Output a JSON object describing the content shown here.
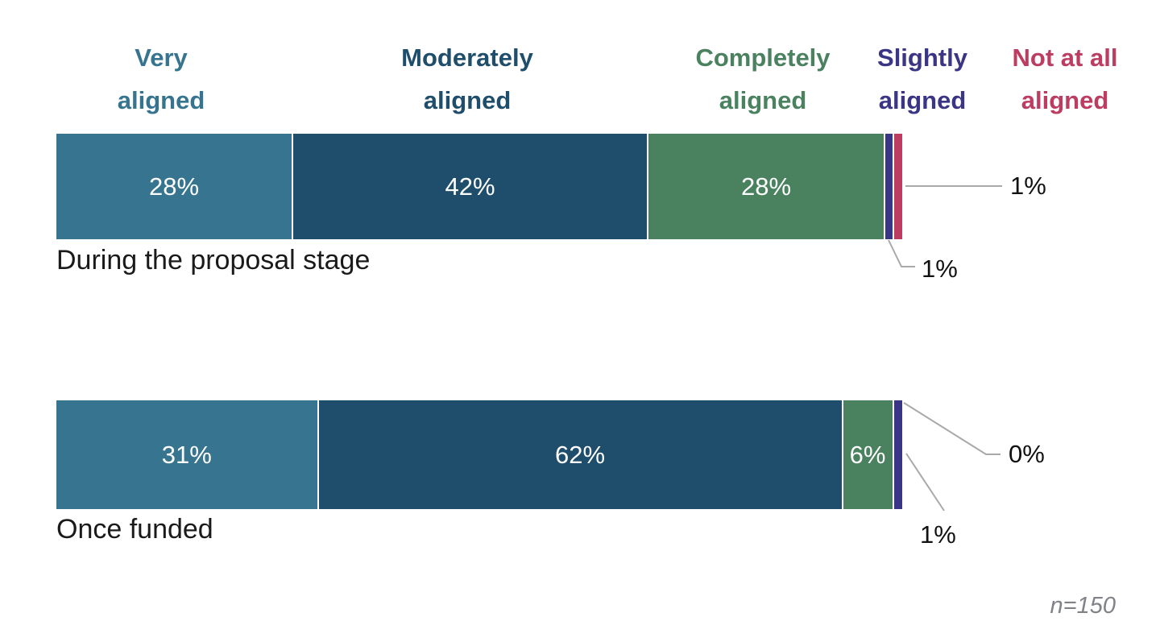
{
  "chart_data": {
    "type": "bar",
    "variant": "horizontal-stacked",
    "orientation": "horizontal",
    "categories": [
      "During the proposal stage",
      "Once funded"
    ],
    "series": [
      {
        "name": "Very aligned",
        "color": "#37748F",
        "values": [
          28,
          31
        ]
      },
      {
        "name": "Moderately aligned",
        "color": "#1F4E6C",
        "values": [
          42,
          62
        ]
      },
      {
        "name": "Completely aligned",
        "color": "#4A8260",
        "values": [
          28,
          6
        ]
      },
      {
        "name": "Slightly aligned",
        "color": "#3B3585",
        "values": [
          1,
          1
        ]
      },
      {
        "name": "Not at all aligned",
        "color": "#BC3C62",
        "values": [
          1,
          0
        ]
      }
    ],
    "value_suffix": "%",
    "segment_labels": [
      [
        "28%",
        "42%",
        "28%"
      ],
      [
        "31%",
        "62%",
        "6%"
      ]
    ],
    "callouts": [
      {
        "row": 0,
        "series": "Not at all aligned",
        "label": "1%"
      },
      {
        "row": 0,
        "series": "Slightly aligned",
        "label": "1%"
      },
      {
        "row": 1,
        "series": "Not at all aligned",
        "label": "0%"
      },
      {
        "row": 1,
        "series": "Slightly aligned",
        "label": "1%"
      }
    ],
    "note": "n=150",
    "xlim": [
      0,
      100
    ],
    "legend_position": "top",
    "grid": false,
    "colors": {
      "leader_line": "#a9a9a9",
      "note_text": "#7f8287",
      "bar_value_text": "#ffffff",
      "category_text": "#1a1a1a"
    }
  }
}
